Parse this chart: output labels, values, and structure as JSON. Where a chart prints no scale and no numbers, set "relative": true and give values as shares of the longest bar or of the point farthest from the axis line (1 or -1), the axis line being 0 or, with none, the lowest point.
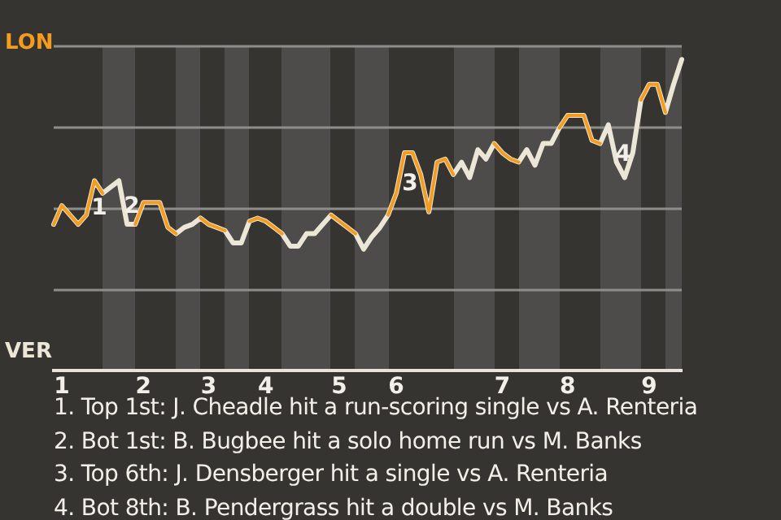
{
  "chart_data": {
    "type": "line",
    "marker": "none",
    "grid": "y",
    "relative": true,
    "categories": [
      null,
      "1",
      null,
      null,
      null,
      null,
      null,
      null,
      null,
      null,
      null,
      "2",
      null,
      null,
      null,
      null,
      null,
      null,
      null,
      "3",
      null,
      null,
      null,
      null,
      null,
      null,
      "4",
      null,
      null,
      null,
      null,
      null,
      null,
      null,
      null,
      "5",
      null,
      null,
      null,
      null,
      null,
      null,
      "6",
      null,
      null,
      null,
      null,
      null,
      null,
      null,
      null,
      null,
      null,
      null,
      null,
      "7",
      null,
      null,
      null,
      null,
      null,
      null,
      null,
      "8",
      null,
      null,
      null,
      null,
      null,
      null,
      null,
      null,
      null,
      "9",
      null,
      null,
      null,
      null
    ],
    "series": [
      {
        "name": "LON",
        "color": "#f39c1f",
        "values": [
          0.47,
          0.53,
          0.5,
          0.47,
          0.5,
          0.61,
          0.57,
          null,
          null,
          null,
          0.47,
          0.54,
          0.54,
          0.54,
          0.46,
          0.44,
          null,
          null,
          0.49,
          0.47,
          0.46,
          0.45,
          null,
          null,
          0.48,
          0.49,
          0.48,
          0.46,
          0.44,
          null,
          null,
          null,
          null,
          null,
          0.5,
          0.48,
          0.46,
          0.44,
          null,
          null,
          null,
          0.5,
          0.57,
          0.7,
          0.7,
          0.63,
          0.51,
          0.67,
          0.68,
          0.63,
          null,
          null,
          null,
          null,
          0.73,
          0.7,
          0.68,
          0.67,
          null,
          null,
          null,
          null,
          0.78,
          0.82,
          0.82,
          0.82,
          0.74,
          0.73,
          null,
          null,
          null,
          null,
          0.87,
          0.92,
          0.92,
          0.83,
          null,
          null
        ]
      },
      {
        "name": "VER",
        "color": "#ece6d6",
        "values": [
          0.47,
          0.53,
          0.5,
          0.47,
          0.5,
          0.61,
          0.57,
          0.59,
          0.61,
          0.47,
          0.47,
          0.54,
          0.54,
          0.54,
          0.46,
          0.44,
          0.46,
          0.47,
          0.49,
          0.47,
          0.46,
          0.45,
          0.41,
          0.41,
          0.48,
          0.49,
          0.48,
          0.46,
          0.44,
          0.4,
          0.4,
          0.44,
          0.44,
          0.47,
          0.5,
          0.48,
          0.46,
          0.44,
          0.39,
          0.43,
          0.46,
          0.5,
          0.57,
          0.7,
          0.7,
          0.63,
          0.51,
          0.67,
          0.68,
          0.63,
          0.67,
          0.62,
          0.71,
          0.68,
          0.73,
          0.7,
          0.68,
          0.67,
          0.71,
          0.66,
          0.73,
          0.73,
          0.78,
          0.82,
          0.82,
          0.82,
          0.74,
          0.73,
          0.79,
          0.67,
          0.62,
          0.7,
          0.87,
          0.92,
          0.92,
          0.83,
          0.92,
          1
        ]
      }
    ],
    "annotations": [
      "1",
      "2",
      "3",
      "4",
      "1. Top 1st: J. Cheadle hit a run-scoring single vs A. Renteria",
      "2. Bot 1st: B. Bugbee hit a solo home run vs M. Banks",
      "3. Top 6th: J. Densberger hit a single vs A. Renteria",
      "4. Bot 8th: B. Pendergrass hit a double vs M. Banks"
    ]
  }
}
